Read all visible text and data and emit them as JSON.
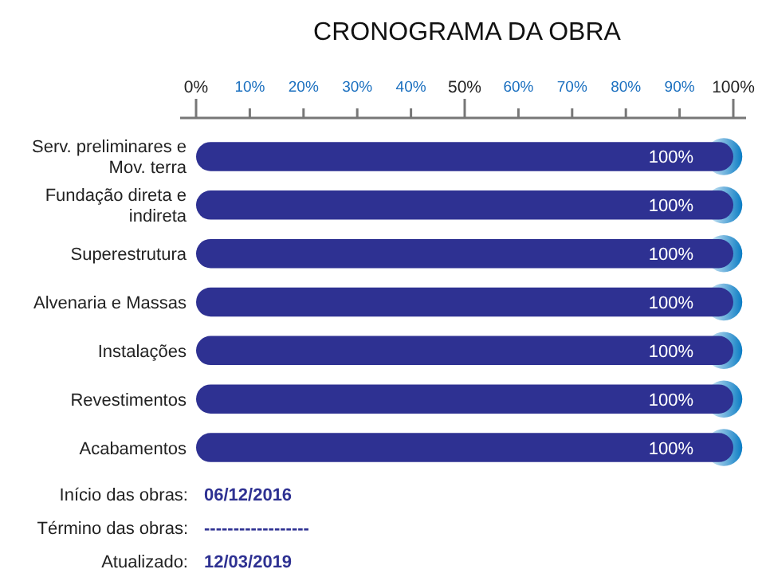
{
  "chart_data": {
    "type": "bar",
    "title": "CRONOGRAMA DA OBRA",
    "orientation": "horizontal",
    "categories": [
      "Serv. preliminares e Mov. terra",
      "Fundação direta e indireta",
      "Superestrutura",
      "Alvenaria e Massas",
      "Instalações",
      "Revestimentos",
      "Acabamentos"
    ],
    "values": [
      100,
      100,
      100,
      100,
      100,
      100,
      100
    ],
    "value_labels": [
      "100%",
      "100%",
      "100%",
      "100%",
      "100%",
      "100%",
      "100%"
    ],
    "color": "#2e3192",
    "xlim": [
      0,
      100
    ],
    "xticks": [
      {
        "value": 0,
        "label": "0%"
      },
      {
        "value": 10,
        "label": "10%"
      },
      {
        "value": 20,
        "label": "20%"
      },
      {
        "value": 30,
        "label": "30%"
      },
      {
        "value": 40,
        "label": "40%"
      },
      {
        "value": 50,
        "label": "50%"
      },
      {
        "value": 60,
        "label": "60%"
      },
      {
        "value": 70,
        "label": "70%"
      },
      {
        "value": 80,
        "label": "80%"
      },
      {
        "value": 90,
        "label": "90%"
      },
      {
        "value": 100,
        "label": "100%"
      }
    ],
    "annotations": [
      "Início das obras:",
      "06/12/2016",
      "Término das obras:",
      "------------------",
      "Atualizado:",
      "12/03/2019"
    ]
  }
}
